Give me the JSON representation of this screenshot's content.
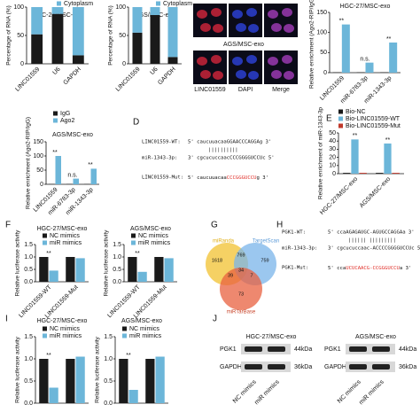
{
  "panel_letters": [
    "D",
    "E",
    "F",
    "G",
    "H",
    "I",
    "J"
  ],
  "chart_data": [
    {
      "type": "stacked_bar",
      "title": "HGC-27/MSC-exo",
      "ylabel": "Percentage of RNA (%)",
      "categories": [
        "LINC01559",
        "U6",
        "GAPDH"
      ],
      "series": [
        {
          "color": "#1a1a1a",
          "values": [
            52,
            88,
            15
          ]
        },
        {
          "name": "Cytoplasm",
          "color": "#6cb6d9",
          "values": [
            48,
            12,
            85
          ]
        }
      ],
      "ylim": [
        0,
        100
      ],
      "yticks": [
        0,
        50,
        100
      ]
    },
    {
      "type": "stacked_bar",
      "title": "AGS/MSC-exo",
      "ylabel": "Percentage of RNA (%)",
      "categories": [
        "LINC01559",
        "U6",
        "GAPDH"
      ],
      "series": [
        {
          "color": "#1a1a1a",
          "values": [
            55,
            86,
            12
          ]
        },
        {
          "name": "Cytoplasm",
          "color": "#6cb6d9",
          "values": [
            45,
            14,
            88
          ]
        }
      ],
      "ylim": [
        0,
        100
      ],
      "yticks": [
        0,
        50,
        100
      ]
    },
    {
      "type": "bar",
      "title": "HGC-27/MSC-exo",
      "ylabel": "Relative enrichment (Ago2-RIP/IgG)",
      "categories": [
        "LINC01559",
        "miR-6783-3p",
        "miR-1343-3p"
      ],
      "series": [
        {
          "color": "#1a1a1a",
          "values": [
            1,
            1,
            1
          ]
        },
        {
          "color": "#6cb6d9",
          "values": [
            120,
            25,
            75
          ]
        }
      ],
      "ylim": [
        0,
        150
      ],
      "yticks": [
        0,
        50,
        100,
        150
      ],
      "annotations": [
        "**",
        "n.s.",
        "**"
      ]
    },
    {
      "type": "bar",
      "title": "AGS/MSC-exo",
      "ylabel": "Relative enrichment (Ago2-RIP/IgG)",
      "categories": [
        "LINC01559",
        "miR-6783-3p",
        "miR-1343-3p"
      ],
      "series": [
        {
          "name": "IgG",
          "color": "#1a1a1a",
          "values": [
            1,
            1,
            1
          ]
        },
        {
          "name": "Ago2",
          "color": "#6cb6d9",
          "values": [
            100,
            20,
            55
          ]
        }
      ],
      "ylim": [
        0,
        150
      ],
      "yticks": [
        0,
        50,
        100,
        150
      ],
      "annotations": [
        "**",
        "n.s.",
        "**"
      ]
    },
    {
      "type": "bar",
      "ylabel": "Relative enrichment of miR-1343-3p",
      "categories": [
        "HGC-27/MSC-exo",
        "AGS/MSC-exo"
      ],
      "series": [
        {
          "name": "Bio-NC",
          "color": "#1a1a1a",
          "values": [
            1,
            1
          ]
        },
        {
          "name": "Bio-LINC01559-WT",
          "color": "#6cb6d9",
          "values": [
            42,
            37
          ]
        },
        {
          "name": "Bio-LINC01559-Mut",
          "color": "#c0392b",
          "values": [
            1,
            1
          ]
        }
      ],
      "ylim": [
        0,
        50
      ],
      "yticks": [
        0,
        10,
        20,
        30,
        40,
        50
      ],
      "annotations": [
        "**",
        "**"
      ]
    },
    {
      "type": "bar",
      "title": "HGC-27/MSC-exo",
      "ylabel": "Relative luciferase activity",
      "categories": [
        "LINC01559-WT",
        "LINC01559-Mut"
      ],
      "series": [
        {
          "name": "NC mimics",
          "color": "#1a1a1a",
          "values": [
            1.0,
            1.0
          ]
        },
        {
          "name": "miR mimics",
          "color": "#6cb6d9",
          "values": [
            0.45,
            0.95
          ]
        }
      ],
      "ylim": [
        0,
        1.5
      ],
      "yticks": [
        {
          "value": 0,
          "label": "0.0"
        },
        {
          "value": 0.5,
          "label": "0.5"
        },
        {
          "value": 1,
          "label": "1.0"
        },
        {
          "value": 1.5,
          "label": "1.5"
        }
      ],
      "annotations": [
        "**",
        null
      ]
    },
    {
      "type": "bar",
      "title": "AGS/MSC-exo",
      "ylabel": "Relative luciferase activity",
      "categories": [
        "LINC01559-WT",
        "LINC01559-Mut"
      ],
      "series": [
        {
          "name": "NC mimics",
          "color": "#1a1a1a",
          "values": [
            1.0,
            1.0
          ]
        },
        {
          "name": "miR mimics",
          "color": "#6cb6d9",
          "values": [
            0.4,
            0.95
          ]
        }
      ],
      "ylim": [
        0,
        1.5
      ],
      "yticks": [
        {
          "value": 0,
          "label": "0.0"
        },
        {
          "value": 0.5,
          "label": "0.5"
        },
        {
          "value": 1,
          "label": "1.0"
        },
        {
          "value": 1.5,
          "label": "1.5"
        }
      ],
      "annotations": [
        "**",
        null
      ]
    },
    {
      "type": "bar",
      "title": "HGC-27/MSC-exo",
      "ylabel": "Relative luciferase activity",
      "categories": [
        null,
        null
      ],
      "series": [
        {
          "name": "NC mimics",
          "color": "#1a1a1a",
          "values": [
            1.0,
            1.0
          ]
        },
        {
          "name": "miR mimics",
          "color": "#6cb6d9",
          "values": [
            0.35,
            1.05
          ]
        }
      ],
      "ylim": [
        0,
        1.5
      ],
      "yticks": [
        {
          "value": 0,
          "label": "0.0"
        },
        {
          "value": 0.5,
          "label": "0.5"
        },
        {
          "value": 1,
          "label": "1.0"
        },
        {
          "value": 1.5,
          "label": "1.5"
        }
      ],
      "annotations": [
        "**",
        null
      ]
    },
    {
      "type": "bar",
      "title": "AGS/MSC-exo",
      "ylabel": "Relative luciferase activity",
      "categories": [
        null,
        null
      ],
      "series": [
        {
          "name": "NC mimics",
          "color": "#1a1a1a",
          "values": [
            1.0,
            1.0
          ]
        },
        {
          "name": "miR mimics",
          "color": "#6cb6d9",
          "values": [
            0.3,
            1.05
          ]
        }
      ],
      "ylim": [
        0,
        1.5
      ],
      "yticks": [
        {
          "value": 0,
          "label": "0.0"
        },
        {
          "value": 0.5,
          "label": "0.5"
        },
        {
          "value": 1,
          "label": "1.0"
        },
        {
          "value": 1.5,
          "label": "1.5"
        }
      ],
      "annotations": [
        "**",
        null
      ]
    }
  ],
  "fluorescence": {
    "title": "AGS/MSC-exo",
    "channels": [
      "LINC01559",
      "DAPI",
      "Merge"
    ]
  },
  "sequences_d": {
    "wt": {
      "label": "LINC01559-WT:",
      "seq": "5' caucuuacaaGGAACCCAGGAg 3'"
    },
    "pairing": "||||||||||",
    "mir": {
      "label": "miR-1343-3p:",
      "seq": "3' cgcucuccaacCCCGGGGUCCUc 5'"
    },
    "mut": {
      "label": "LINC01559-Mut:",
      "seq": [
        "5' caucuuacaa",
        "CCCGGGUCCU",
        "g 3'"
      ],
      "mutation_color": "#e0302a"
    }
  },
  "sequences_h": {
    "wt": {
      "label": "PGK1-WT:",
      "seq": "5' ccaAGAGAUGC-AGUGCCAGGAa 3'"
    },
    "pairing": "||||||  |||||||||",
    "mir": {
      "label": "miR-1343-3p:",
      "seq": "3' cgcucuccaac-ACCCCGGGGUCCUc 5'"
    },
    "mut": {
      "label": "PGK1-Mut:",
      "seq": [
        "5' cca",
        "UCUCAACG-CCGGGUCCU",
        "a 3'"
      ],
      "mutation_color": "#e0302a"
    }
  },
  "venn": {
    "sets": [
      {
        "label": "miRanda",
        "color": "#f2c230"
      },
      {
        "label": "TargetScan",
        "color": "#7ab4ea"
      },
      {
        "label": "miRTarBase",
        "color": "#e8603f"
      }
    ],
    "counts": [
      1618,
      769,
      759,
      39,
      34,
      7,
      73
    ]
  },
  "blot": {
    "panels": [
      {
        "title": "HGC-27/MSC-exo"
      },
      {
        "title": "AGS/MSC-exo"
      }
    ],
    "bands": [
      "PGK1",
      "GAPDH"
    ],
    "sizes": [
      "44kDa",
      "36kDa"
    ],
    "lanes": [
      "NC mimics",
      "miR mimics"
    ]
  }
}
